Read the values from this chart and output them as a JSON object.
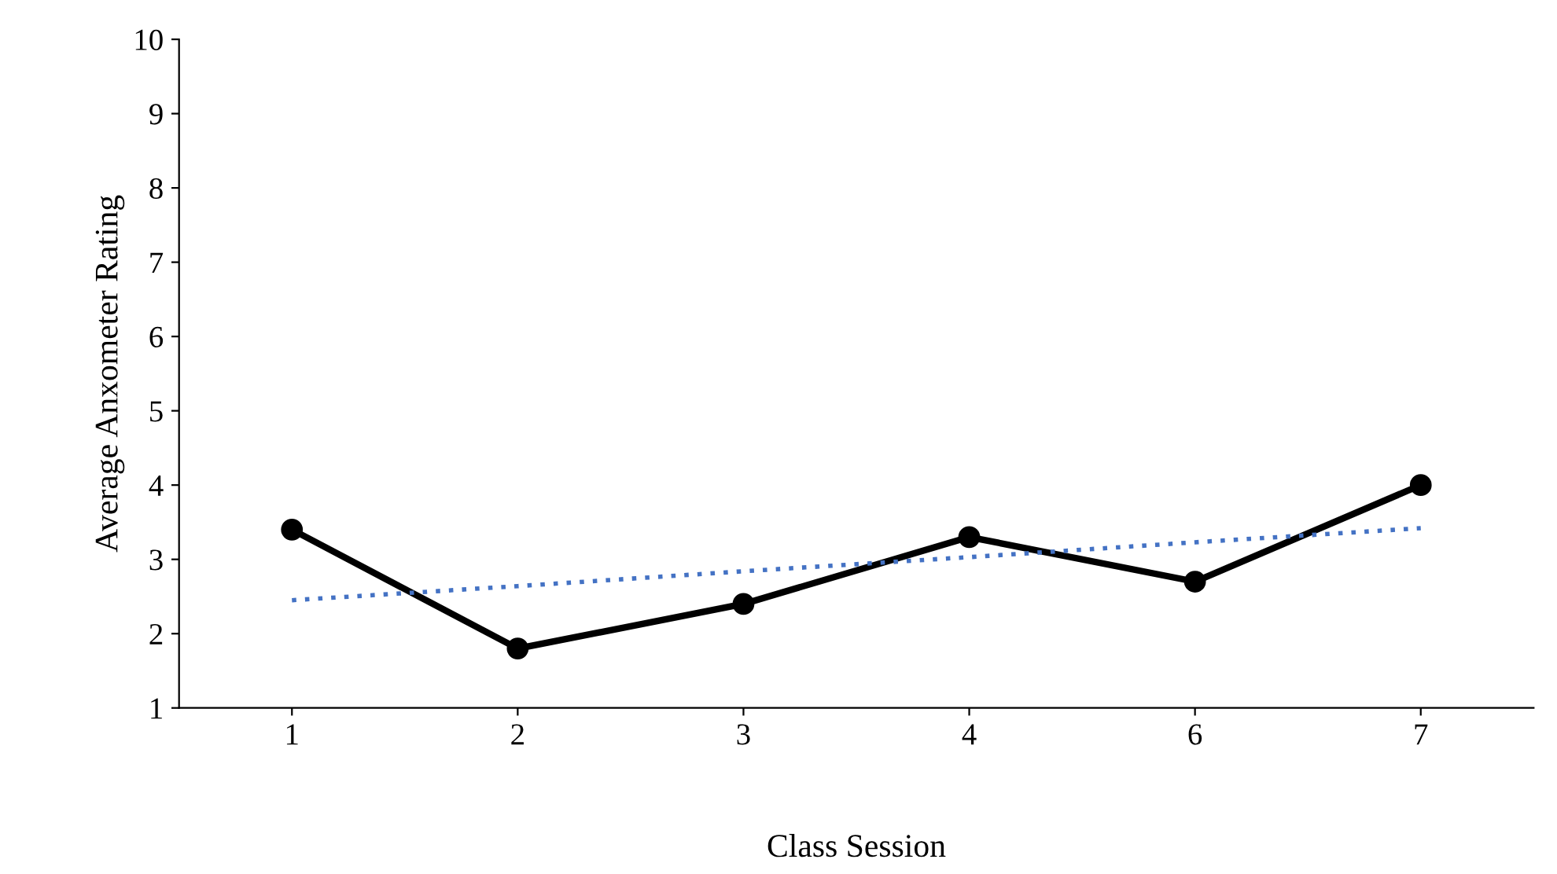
{
  "chart_data": {
    "type": "line",
    "xlabel": "Class Session",
    "ylabel": "Average Anxometer Rating",
    "categories": [
      "1",
      "2",
      "3",
      "4",
      "6",
      "7"
    ],
    "series": [
      {
        "color": "#000000",
        "values": [
          3.4,
          1.8,
          2.4,
          3.3,
          2.7,
          4.0
        ],
        "marker": "circle",
        "line_style": "solid"
      },
      {
        "color": "#4472c4",
        "values": [
          2.45,
          2.64,
          2.84,
          3.03,
          3.23,
          3.42
        ],
        "marker": "none",
        "line_style": "dotted"
      }
    ],
    "ylim": [
      1,
      10
    ],
    "yticks": [
      1,
      2,
      3,
      4,
      5,
      6,
      7,
      8,
      9,
      10
    ],
    "grid": false,
    "legend": false
  }
}
